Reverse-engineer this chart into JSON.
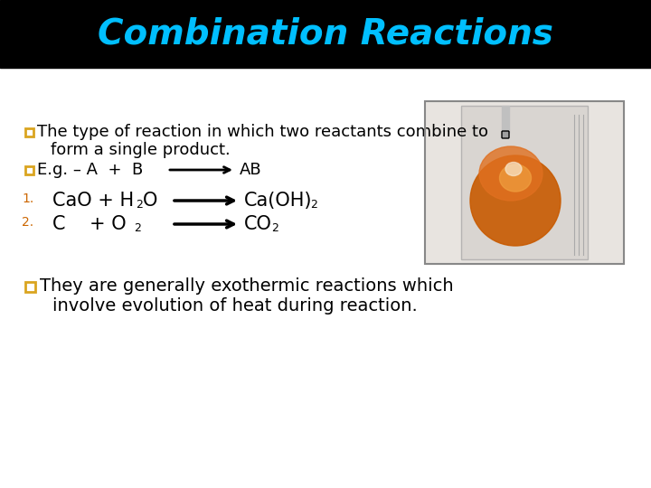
{
  "title": "Combination Reactions",
  "title_color": "#00BFFF",
  "title_bg_color": "#000000",
  "slide_bg_color": "#FFFFFF",
  "bullet_color": "#DAA520",
  "text_color": "#000000",
  "number_color": "#CC6600",
  "title_fontsize": 28,
  "body_fontsize": 13,
  "chem_fontsize": 15,
  "bullet1_line1": "The type of reaction in which two reactants combine to",
  "bullet1_line2": "form a single product.",
  "bullet2_line1": "They are generally exothermic reactions which",
  "bullet2_line2": "involve evolution of heat during reaction.",
  "title_bar_height": 75
}
